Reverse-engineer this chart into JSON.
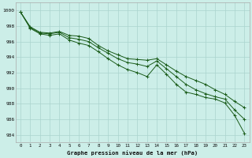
{
  "title": "Graphe pression niveau de la mer (hPa)",
  "background_color": "#cceee8",
  "grid_color": "#aad4ce",
  "line_color": "#1a5c1a",
  "x_labels": [
    "0",
    "1",
    "2",
    "3",
    "4",
    "5",
    "6",
    "7",
    "8",
    "9",
    "10",
    "11",
    "12",
    "13",
    "14",
    "15",
    "16",
    "17",
    "18",
    "19",
    "20",
    "21",
    "22",
    "23"
  ],
  "ylim": [
    983,
    1001
  ],
  "yticks": [
    984,
    986,
    988,
    990,
    992,
    994,
    996,
    998,
    1000
  ],
  "series1": [
    999.8,
    997.9,
    997.2,
    997.1,
    997.3,
    996.8,
    996.7,
    996.4,
    995.5,
    994.8,
    994.3,
    993.8,
    993.7,
    993.6,
    993.8,
    993.0,
    992.2,
    991.5,
    991.0,
    990.5,
    989.8,
    989.2,
    988.3,
    987.5
  ],
  "series2": [
    999.8,
    997.8,
    997.1,
    997.0,
    997.2,
    996.5,
    996.3,
    996.0,
    995.2,
    994.5,
    993.8,
    993.3,
    993.1,
    992.8,
    993.5,
    992.5,
    991.5,
    990.5,
    989.8,
    989.3,
    988.9,
    988.6,
    987.2,
    986.0
  ],
  "series3": [
    999.8,
    997.7,
    997.0,
    996.8,
    997.0,
    996.2,
    995.8,
    995.5,
    994.7,
    993.8,
    993.0,
    992.4,
    992.0,
    991.5,
    993.0,
    991.8,
    990.5,
    989.5,
    989.2,
    988.8,
    988.6,
    988.1,
    986.5,
    984.2
  ]
}
